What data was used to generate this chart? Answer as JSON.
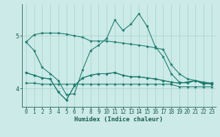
{
  "title": "",
  "xlabel": "Humidex (Indice chaleur)",
  "bg_color": "#cceae7",
  "plot_bg_color": "#cceae7",
  "line_color": "#1a7a6e",
  "grid_color": "#aad4d0",
  "text_color": "#1a5c52",
  "xlim": [
    -0.5,
    23.5
  ],
  "ylim": [
    3.65,
    5.6
  ],
  "yticks": [
    4,
    5
  ],
  "xticks": [
    0,
    1,
    2,
    3,
    4,
    5,
    6,
    7,
    8,
    9,
    10,
    11,
    12,
    13,
    14,
    15,
    16,
    17,
    18,
    19,
    20,
    21,
    22,
    23
  ],
  "series": [
    [
      4.88,
      4.72,
      4.4,
      4.28,
      4.15,
      3.88,
      3.9,
      4.35,
      4.72,
      4.82,
      4.95,
      5.3,
      5.1,
      5.22,
      5.42,
      5.18,
      4.8,
      4.6,
      4.28,
      4.12,
      4.1,
      4.15,
      4.08,
      4.1
    ],
    [
      4.88,
      5.02,
      5.05,
      5.05,
      5.05,
      5.03,
      5.0,
      4.97,
      4.9,
      4.9,
      4.9,
      4.88,
      4.86,
      4.84,
      4.82,
      4.8,
      4.77,
      4.74,
      4.45,
      4.28,
      4.18,
      4.15,
      4.12,
      4.1
    ],
    [
      4.3,
      4.25,
      4.2,
      4.18,
      3.93,
      3.78,
      4.05,
      4.2,
      4.25,
      4.28,
      4.28,
      4.3,
      4.25,
      4.22,
      4.22,
      4.2,
      4.18,
      4.15,
      4.12,
      4.1,
      4.12,
      4.15,
      4.1,
      4.08
    ],
    [
      4.3,
      4.25,
      4.2,
      4.18,
      3.93,
      3.78,
      4.05,
      4.2,
      4.25,
      4.28,
      4.28,
      4.3,
      4.25,
      4.22,
      4.22,
      4.2,
      4.18,
      4.15,
      4.12,
      4.1,
      4.12,
      4.15,
      4.1,
      4.08
    ],
    [
      4.1,
      4.1,
      4.08,
      4.08,
      4.08,
      4.08,
      4.08,
      4.08,
      4.08,
      4.08,
      4.08,
      4.08,
      4.08,
      4.08,
      4.08,
      4.08,
      4.08,
      4.08,
      4.08,
      4.03,
      4.03,
      4.03,
      4.03,
      4.03
    ]
  ]
}
